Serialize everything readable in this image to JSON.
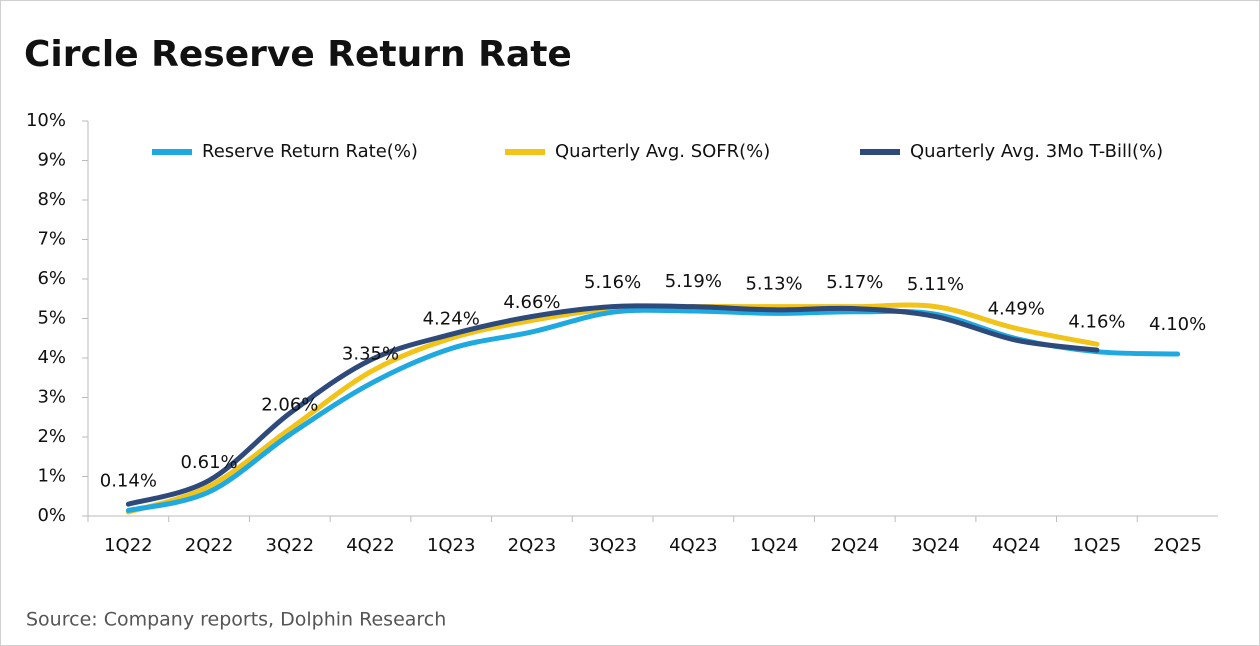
{
  "chart_data": {
    "type": "line",
    "title": "Circle Reserve Return Rate",
    "source": "Source: Company reports, Dolphin Research",
    "categories": [
      "1Q22",
      "2Q22",
      "3Q22",
      "4Q22",
      "1Q23",
      "2Q23",
      "3Q23",
      "4Q23",
      "1Q24",
      "2Q24",
      "3Q24",
      "4Q24",
      "1Q25",
      "2Q25"
    ],
    "series": [
      {
        "name": "Reserve Return Rate(%)",
        "color": "#1fa9e1",
        "values": [
          0.14,
          0.61,
          2.06,
          3.35,
          4.24,
          4.66,
          5.16,
          5.19,
          5.13,
          5.17,
          5.11,
          4.49,
          4.16,
          4.1
        ],
        "value_labels": [
          "0.14%",
          "0.61%",
          "2.06%",
          "3.35%",
          "4.24%",
          "4.66%",
          "5.16%",
          "5.19%",
          "5.13%",
          "5.17%",
          "5.11%",
          "4.49%",
          "4.16%",
          "4.10%"
        ]
      },
      {
        "name": "Quarterly Avg. SOFR(%)",
        "color": "#f2c318",
        "values": [
          0.1,
          0.75,
          2.2,
          3.65,
          4.5,
          4.95,
          5.25,
          5.3,
          5.3,
          5.3,
          5.3,
          4.75,
          4.35,
          null
        ]
      },
      {
        "name": "Quarterly Avg. 3Mo T-Bill(%)",
        "color": "#2d4a7b",
        "values": [
          0.3,
          0.9,
          2.6,
          3.95,
          4.6,
          5.05,
          5.3,
          5.3,
          5.22,
          5.25,
          5.05,
          4.45,
          4.2,
          null
        ]
      }
    ],
    "ylim": [
      0,
      10
    ],
    "yticks": [
      {
        "value": 0,
        "label": "0%"
      },
      {
        "value": 1,
        "label": "1%"
      },
      {
        "value": 2,
        "label": "2%"
      },
      {
        "value": 3,
        "label": "3%"
      },
      {
        "value": 4,
        "label": "4%"
      },
      {
        "value": 5,
        "label": "5%"
      },
      {
        "value": 6,
        "label": "6%"
      },
      {
        "value": 7,
        "label": "7%"
      },
      {
        "value": 8,
        "label": "8%"
      },
      {
        "value": 9,
        "label": "9%"
      },
      {
        "value": 10,
        "label": "10%"
      }
    ]
  }
}
